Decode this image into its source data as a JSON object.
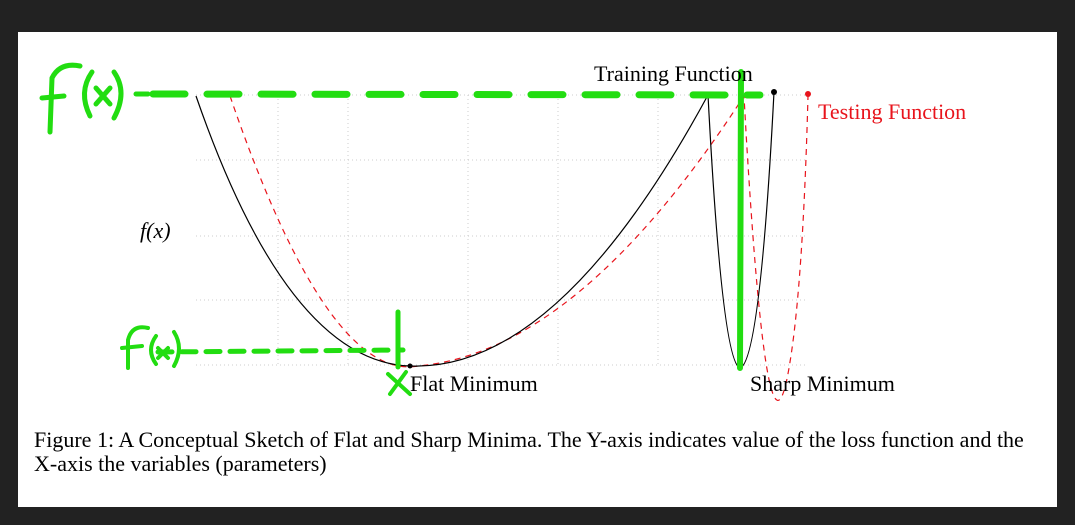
{
  "figure": {
    "labels": {
      "training": "Training Function",
      "testing": "Testing Function",
      "fx": "f(x)",
      "flat": "Flat Minimum",
      "sharp": "Sharp Minimum"
    },
    "colors": {
      "training": "#000000",
      "testing": "#e8141c",
      "annotation": "#22dd11",
      "grid": "#cccccc"
    },
    "handwritten": {
      "top_label": "f(x)",
      "bottom_label": "f(x)"
    }
  },
  "caption": {
    "text": "Figure 1: A Conceptual Sketch of Flat and Sharp Minima. The Y-axis indicates value of the loss function and the X-axis the variables (parameters)"
  }
}
